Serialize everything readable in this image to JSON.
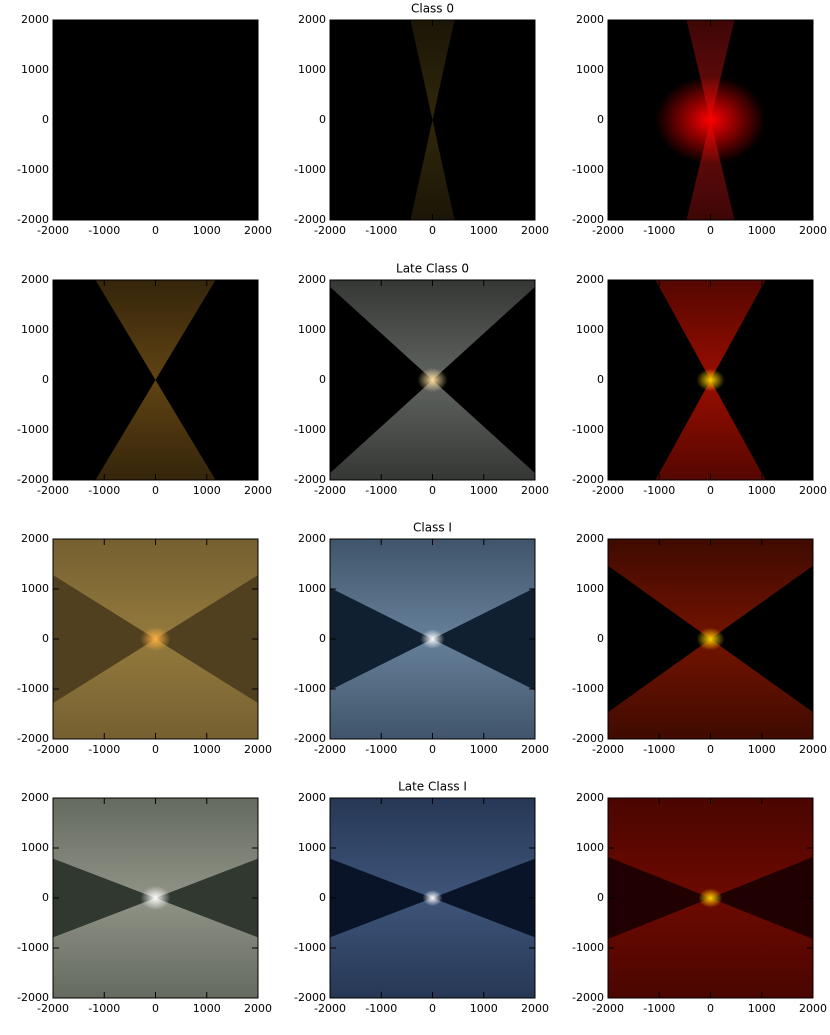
{
  "chart_data": [
    {
      "type": "image",
      "xlim": [
        -2000,
        2000
      ],
      "ylim": [
        -2000,
        2000
      ],
      "xticks": [
        -2000,
        -1000,
        0,
        1000,
        2000
      ],
      "yticks": [
        -2000,
        -1000,
        0,
        1000,
        2000
      ]
    },
    {
      "type": "image",
      "title": "Class 0",
      "xlim": [
        -2000,
        2000
      ],
      "ylim": [
        -2000,
        2000
      ],
      "xticks": [
        -2000,
        -1000,
        0,
        1000,
        2000
      ],
      "yticks": [
        -2000,
        -1000,
        0,
        1000,
        2000
      ]
    },
    {
      "type": "image",
      "xlim": [
        -2000,
        2000
      ],
      "ylim": [
        -2000,
        2000
      ],
      "xticks": [
        -2000,
        -1000,
        0,
        1000,
        2000
      ],
      "yticks": [
        -2000,
        -1000,
        0,
        1000,
        2000
      ]
    },
    {
      "type": "image",
      "xlim": [
        -2000,
        2000
      ],
      "ylim": [
        -2000,
        2000
      ],
      "xticks": [
        -2000,
        -1000,
        0,
        1000,
        2000
      ],
      "yticks": [
        -2000,
        -1000,
        0,
        1000,
        2000
      ]
    },
    {
      "type": "image",
      "title": "Late Class 0",
      "xlim": [
        -2000,
        2000
      ],
      "ylim": [
        -2000,
        2000
      ],
      "xticks": [
        -2000,
        -1000,
        0,
        1000,
        2000
      ],
      "yticks": [
        -2000,
        -1000,
        0,
        1000,
        2000
      ]
    },
    {
      "type": "image",
      "xlim": [
        -2000,
        2000
      ],
      "ylim": [
        -2000,
        2000
      ],
      "xticks": [
        -2000,
        -1000,
        0,
        1000,
        2000
      ],
      "yticks": [
        -2000,
        -1000,
        0,
        1000,
        2000
      ]
    },
    {
      "type": "image",
      "xlim": [
        -2000,
        2000
      ],
      "ylim": [
        -2000,
        2000
      ],
      "xticks": [
        -2000,
        -1000,
        0,
        1000,
        2000
      ],
      "yticks": [
        -2000,
        -1000,
        0,
        1000,
        2000
      ]
    },
    {
      "type": "image",
      "title": "Class I",
      "xlim": [
        -2000,
        2000
      ],
      "ylim": [
        -2000,
        2000
      ],
      "xticks": [
        -2000,
        -1000,
        0,
        1000,
        2000
      ],
      "yticks": [
        -2000,
        -1000,
        0,
        1000,
        2000
      ]
    },
    {
      "type": "image",
      "xlim": [
        -2000,
        2000
      ],
      "ylim": [
        -2000,
        2000
      ],
      "xticks": [
        -2000,
        -1000,
        0,
        1000,
        2000
      ],
      "yticks": [
        -2000,
        -1000,
        0,
        1000,
        2000
      ]
    },
    {
      "type": "image",
      "xlim": [
        -2000,
        2000
      ],
      "ylim": [
        -2000,
        2000
      ],
      "xticks": [
        -2000,
        -1000,
        0,
        1000,
        2000
      ],
      "yticks": [
        -2000,
        -1000,
        0,
        1000,
        2000
      ]
    },
    {
      "type": "image",
      "title": "Late Class I",
      "xlim": [
        -2000,
        2000
      ],
      "ylim": [
        -2000,
        2000
      ],
      "xticks": [
        -2000,
        -1000,
        0,
        1000,
        2000
      ],
      "yticks": [
        -2000,
        -1000,
        0,
        1000,
        2000
      ]
    },
    {
      "type": "image",
      "xlim": [
        -2000,
        2000
      ],
      "ylim": [
        -2000,
        2000
      ],
      "xticks": [
        -2000,
        -1000,
        0,
        1000,
        2000
      ],
      "yticks": [
        -2000,
        -1000,
        0,
        1000,
        2000
      ]
    }
  ]
}
